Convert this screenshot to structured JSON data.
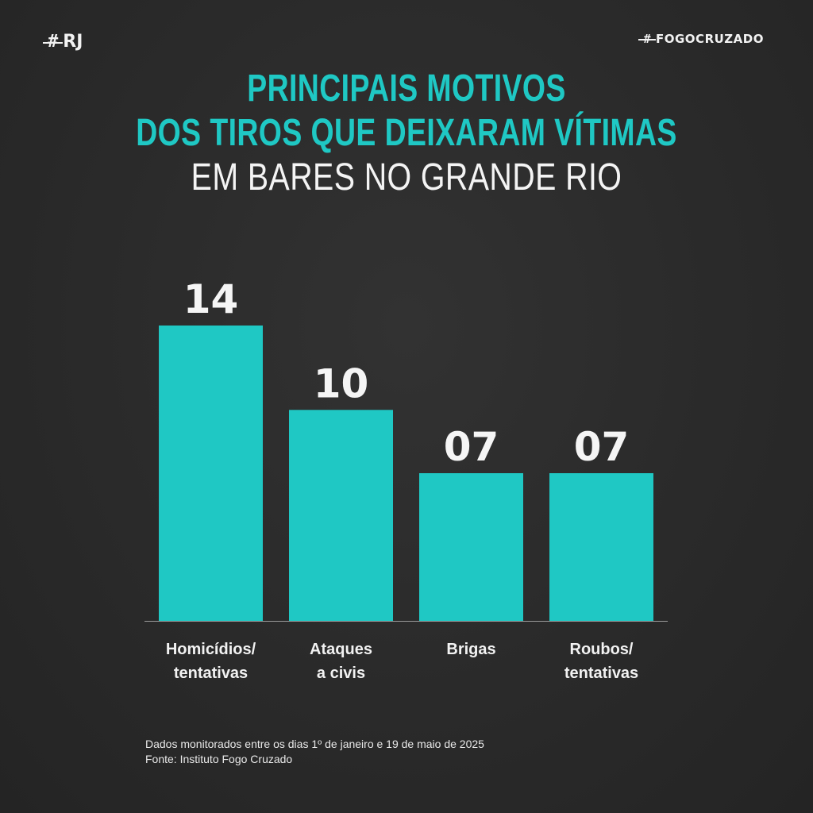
{
  "header": {
    "left_logo_text": "RJ",
    "right_logo_text": "FOGOCRUZADO"
  },
  "title": {
    "line1": "PRINCIPAIS MOTIVOS",
    "line2": "DOS TIROS QUE DEIXARAM VÍTIMAS",
    "line3": "EM BARES NO GRANDE RIO"
  },
  "colors": {
    "accent": "#1fc8c4",
    "background": "#2b2b2b",
    "text": "#ffffff"
  },
  "chart_data": {
    "type": "bar",
    "title": "PRINCIPAIS MOTIVOS DOS TIROS QUE DEIXARAM VÍTIMAS EM BARES NO GRANDE RIO",
    "categories": [
      [
        "Homicídios/",
        "tentativas"
      ],
      [
        "Ataques",
        "a civis"
      ],
      [
        "Brigas"
      ],
      [
        "Roubos/",
        "tentativas"
      ]
    ],
    "values": [
      14,
      10,
      7,
      7
    ],
    "value_labels": [
      "14",
      "10",
      "07",
      "07"
    ],
    "ylim": [
      0,
      14
    ],
    "grid": false,
    "legend": "none"
  },
  "footnote": {
    "line1": "Dados monitorados entre os dias 1º de janeiro e 19 de maio de 2025",
    "line2": "Fonte: Instituto Fogo Cruzado"
  }
}
